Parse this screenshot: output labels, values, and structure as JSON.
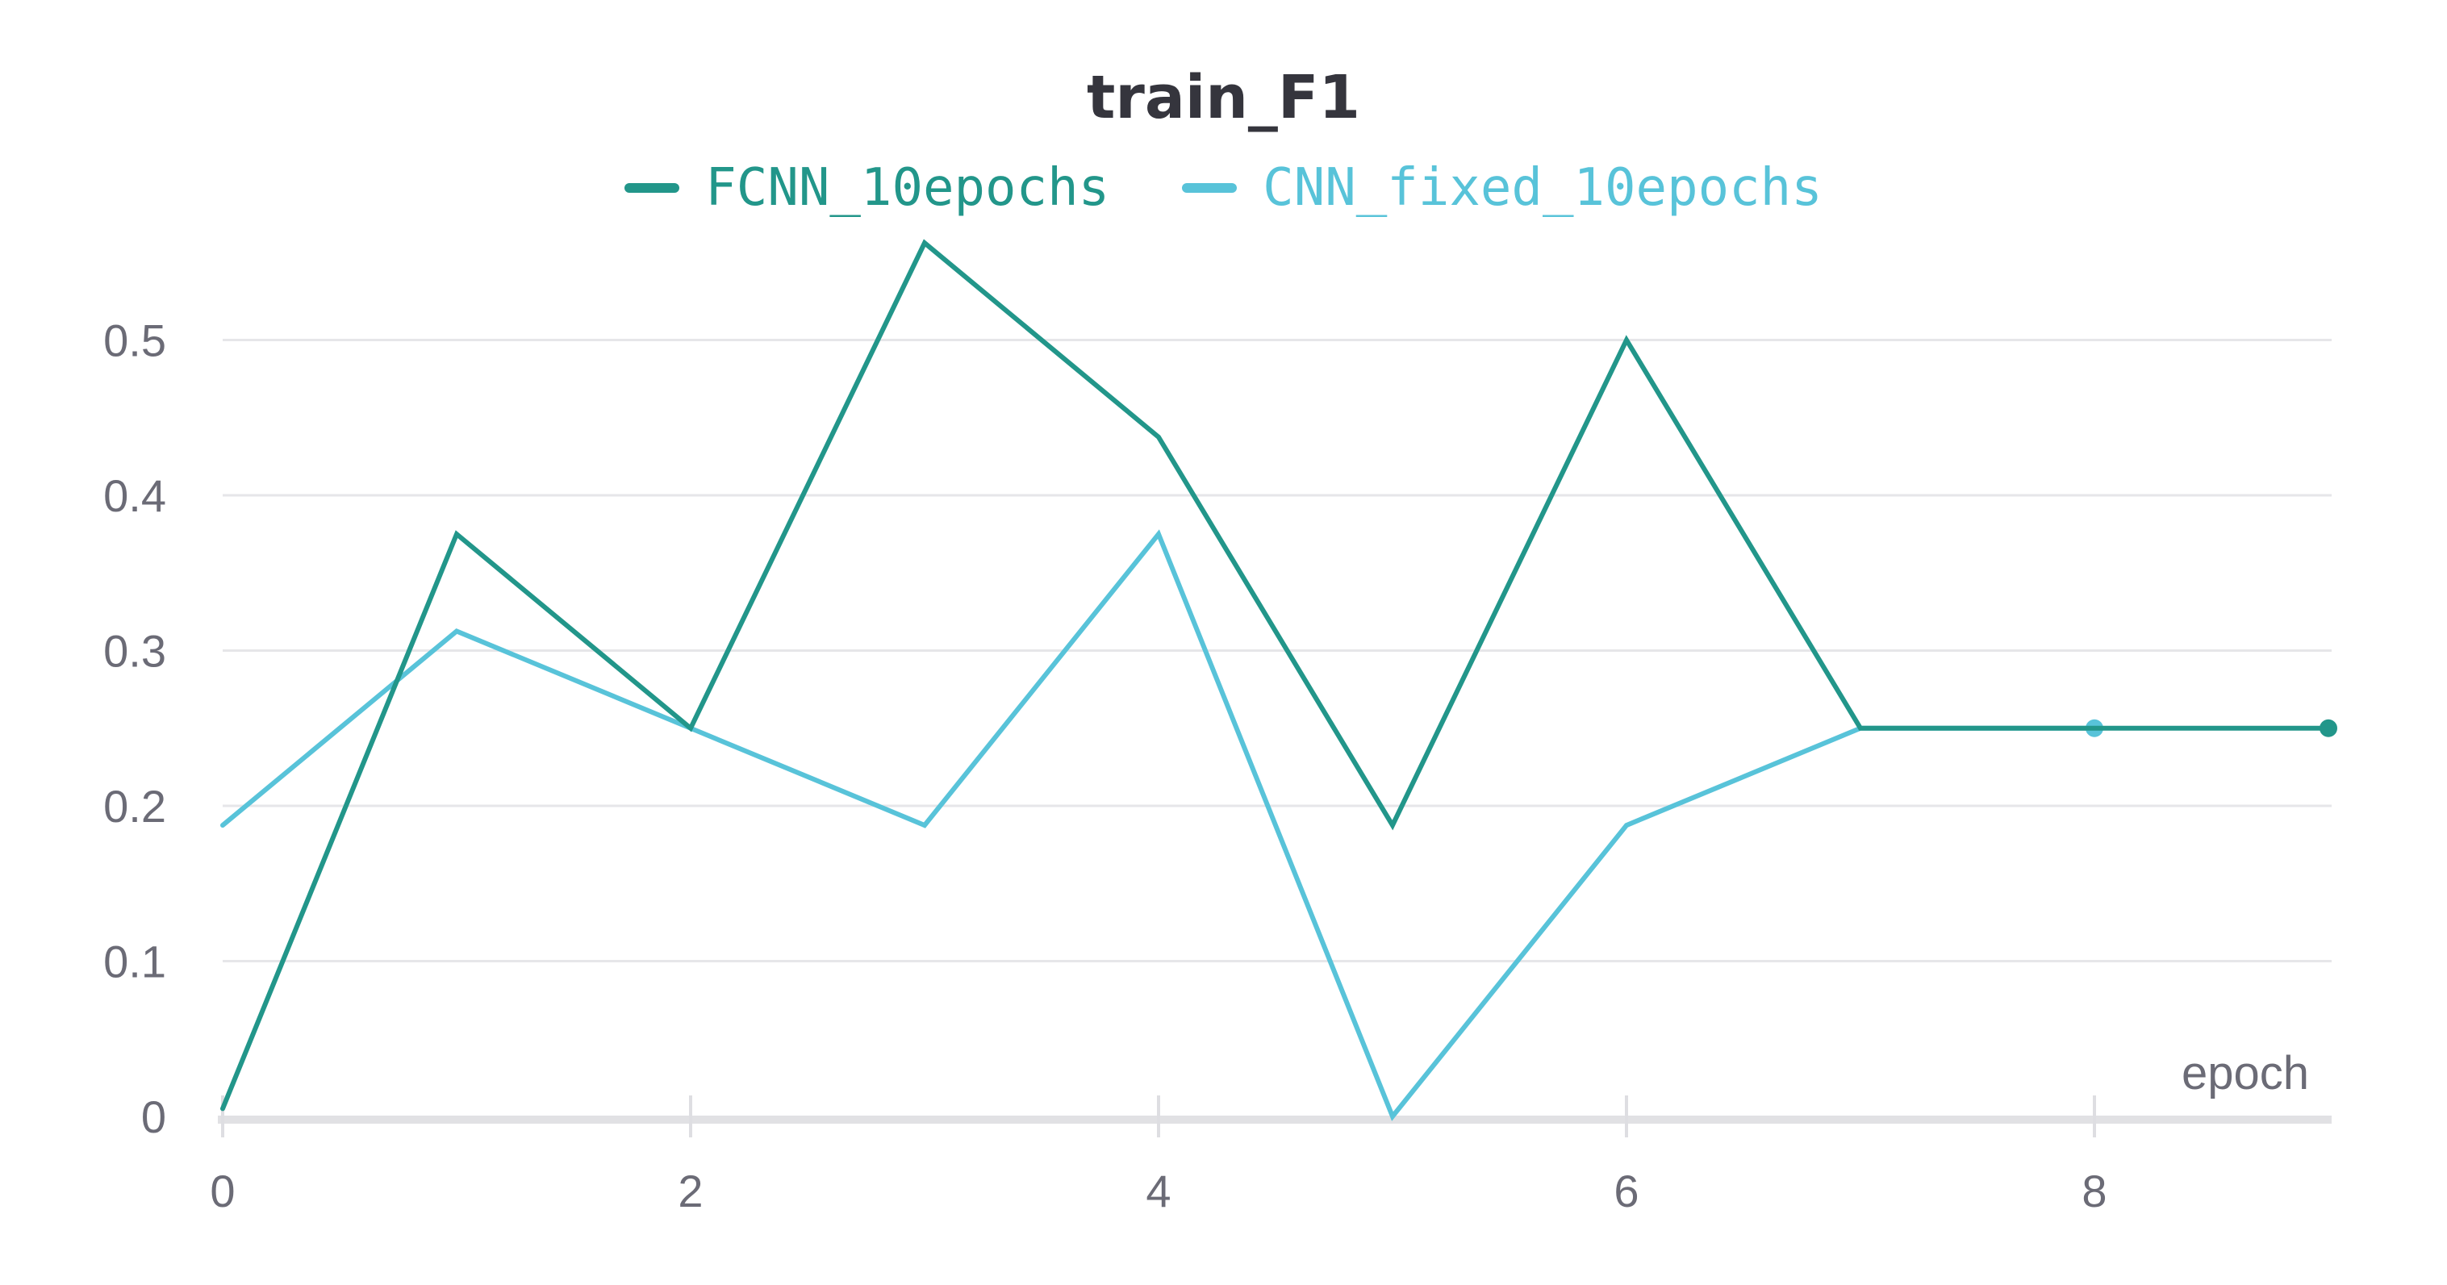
{
  "chart_data": {
    "type": "line",
    "title": "train_F1",
    "xlabel": "epoch",
    "ylabel": "",
    "xlim": [
      0,
      9
    ],
    "ylim": [
      0,
      0.56
    ],
    "x_ticks": [
      0,
      2,
      4,
      6,
      8
    ],
    "y_ticks": [
      0,
      0.1,
      0.2,
      0.3,
      0.4,
      0.5
    ],
    "y_tick_labels": [
      "0",
      "0.1",
      "0.2",
      "0.3",
      "0.4",
      "0.5"
    ],
    "grid": true,
    "legend_position": "top-center",
    "x": [
      0,
      1,
      2,
      3,
      4,
      5,
      6,
      7,
      8,
      9
    ],
    "series": [
      {
        "name": "FCNN_10epochs",
        "color": "#22968a",
        "x": [
          0,
          1,
          2,
          3,
          4,
          5,
          6,
          7,
          8,
          9
        ],
        "values": [
          0.005,
          0.375,
          0.25,
          0.5625,
          0.4375,
          0.1875,
          0.5,
          0.25,
          0.25,
          0.25
        ]
      },
      {
        "name": "CNN_fixed_10epochs",
        "color": "#58c3d9",
        "x": [
          0,
          1,
          2,
          3,
          4,
          5,
          6,
          7,
          8
        ],
        "values": [
          0.1875,
          0.3125,
          0.25,
          0.1875,
          0.375,
          0.0,
          0.1875,
          0.25,
          0.25
        ]
      }
    ]
  }
}
